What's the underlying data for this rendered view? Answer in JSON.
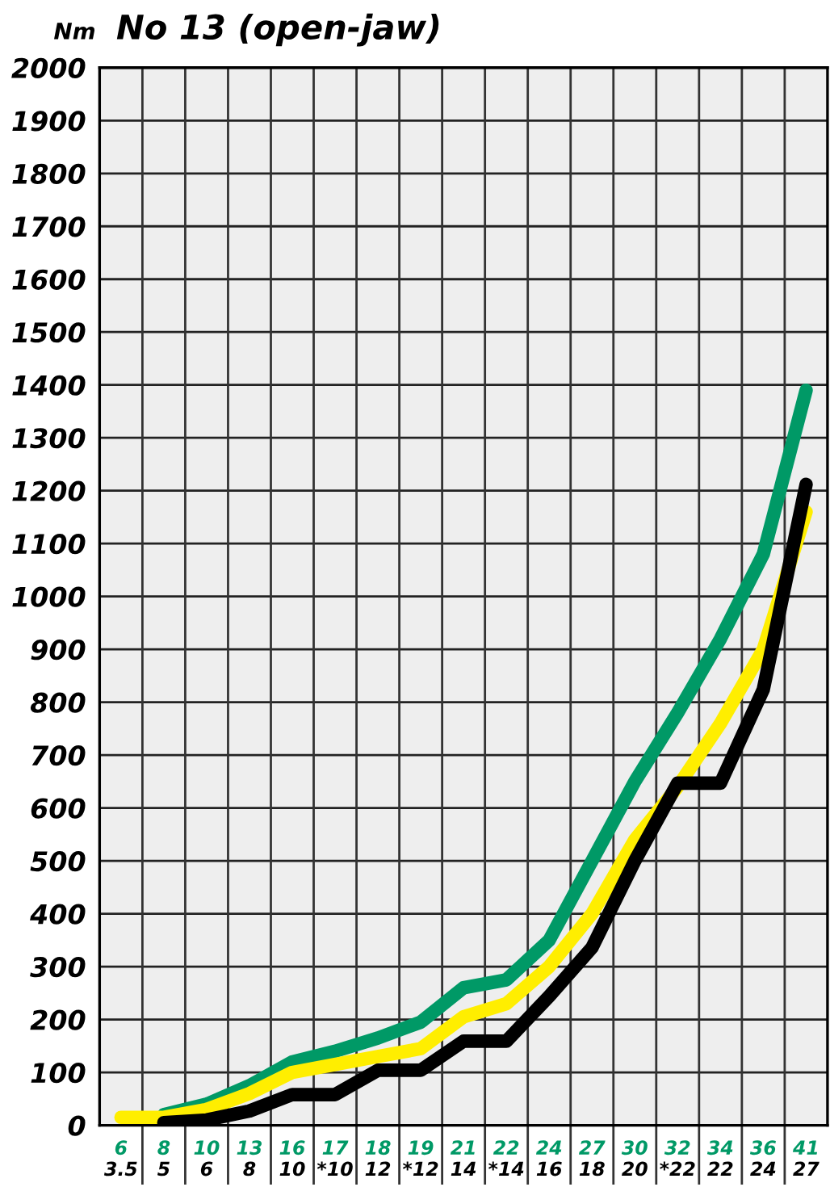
{
  "chart_data": {
    "type": "line",
    "title": "No 13 (open-jaw)",
    "ylabel": "Nm",
    "categories": [
      "6\n3.5",
      "8\n5",
      "10\n6",
      "13\n8",
      "16\n10",
      "17\n*10",
      "18\n12",
      "19\n*12",
      "21\n14",
      "22\n*14",
      "24\n16",
      "27\n18",
      "30\n20",
      "32\n*22",
      "34\n22",
      "36\n24",
      "41\n27"
    ],
    "series": [
      {
        "color": "#009966",
        "values": [
          null,
          20,
          40,
          75,
          120,
          140,
          165,
          195,
          260,
          275,
          350,
          500,
          650,
          780,
          920,
          1080,
          1390
        ]
      },
      {
        "color": "#ffee00",
        "values": [
          15,
          15,
          30,
          60,
          100,
          115,
          130,
          145,
          205,
          230,
          300,
          400,
          540,
          640,
          760,
          900,
          1160
        ]
      },
      {
        "color": "#000000",
        "values": [
          null,
          5,
          10,
          27,
          58,
          58,
          104,
          104,
          159,
          159,
          244,
          336,
          500,
          647,
          647,
          824,
          1212
        ]
      }
    ],
    "ylim": [
      0,
      2000
    ],
    "yticks": [
      0,
      100,
      200,
      300,
      400,
      500,
      600,
      700,
      800,
      900,
      1000,
      1100,
      1200,
      1300,
      1400,
      1500,
      1600,
      1700,
      1800,
      1900,
      2000
    ],
    "grid": true,
    "marker": "none",
    "line_style": "solid"
  }
}
